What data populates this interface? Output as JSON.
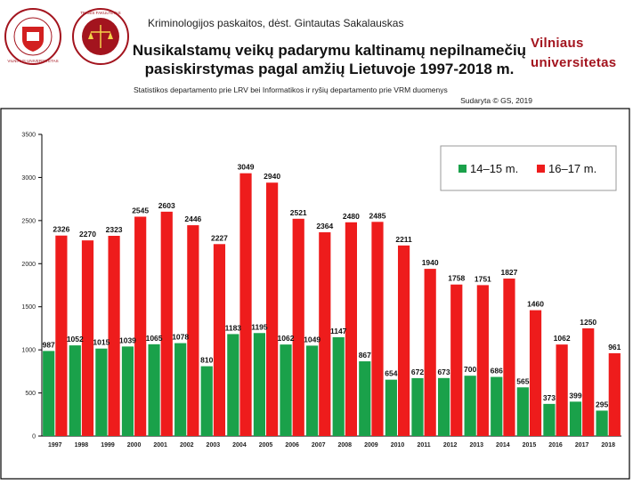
{
  "header": {
    "course": "Kriminologijos paskaitos, dėst. Gintautas Sakalauskas",
    "title_line1": "Nusikalstamų veikų padarymu kaltinamų nepilnamečių",
    "title_line2": "pasiskirstymas pagal amžių Lietuvoje 1997-2018 m.",
    "source": "Statistikos departamento prie LRV bei Informatikos ir ryšių departamento prie VRM duomenys",
    "credit": "Sudaryta © GS, 2019"
  },
  "logos": {
    "university_seal_label": "VILNIAUS UNIVERSITETAS",
    "faculty_seal_label": "TEISĖS FAKULTETAS",
    "brand_line1": "Vilniaus",
    "brand_line2": "universitetas",
    "colors": {
      "brand": "#a3141e"
    }
  },
  "chart_data": {
    "type": "bar",
    "categories": [
      "1997",
      "1998",
      "1999",
      "2000",
      "2001",
      "2002",
      "2003",
      "2004",
      "2005",
      "2006",
      "2007",
      "2008",
      "2009",
      "2010",
      "2011",
      "2012",
      "2013",
      "2014",
      "2015",
      "2016",
      "2017",
      "2018"
    ],
    "series": [
      {
        "name": "14–15 m.",
        "color": "#1aa14a",
        "values": [
          987,
          1052,
          1015,
          1039,
          1065,
          1078,
          810,
          1183,
          1195,
          1062,
          1049,
          1147,
          867,
          654,
          672,
          673,
          700,
          686,
          565,
          373,
          399,
          295
        ]
      },
      {
        "name": "16–17 m.",
        "color": "#ee1c1c",
        "values": [
          2326,
          2270,
          2323,
          2545,
          2603,
          2446,
          2227,
          3049,
          2940,
          2521,
          2364,
          2480,
          2485,
          2211,
          1940,
          1758,
          1751,
          1827,
          1460,
          1062,
          1250,
          961
        ]
      }
    ],
    "value_labels": [
      [
        "987",
        "1052",
        "1015",
        "1039",
        "1065",
        "1078",
        "810",
        "1183",
        "1195",
        "1062",
        "1049",
        "1147",
        "867",
        "654",
        "672",
        "673",
        "700",
        "686",
        "565",
        "373",
        "399",
        "295"
      ],
      [
        "2326",
        "2270",
        "2323",
        "2545",
        "2603",
        "2446",
        "2227",
        "3049",
        "2940",
        "2521",
        "2364",
        "2480",
        "2485",
        "2211",
        "1940",
        "1758",
        "1751",
        "1827",
        "1460",
        "1062",
        "1250",
        "961"
      ]
    ],
    "yticks": [
      "0",
      "500",
      "1000",
      "1500",
      "2000",
      "2500",
      "3000",
      "3500"
    ],
    "ylim": [
      0,
      3500
    ],
    "grid": false,
    "legend_position": "top-right"
  }
}
